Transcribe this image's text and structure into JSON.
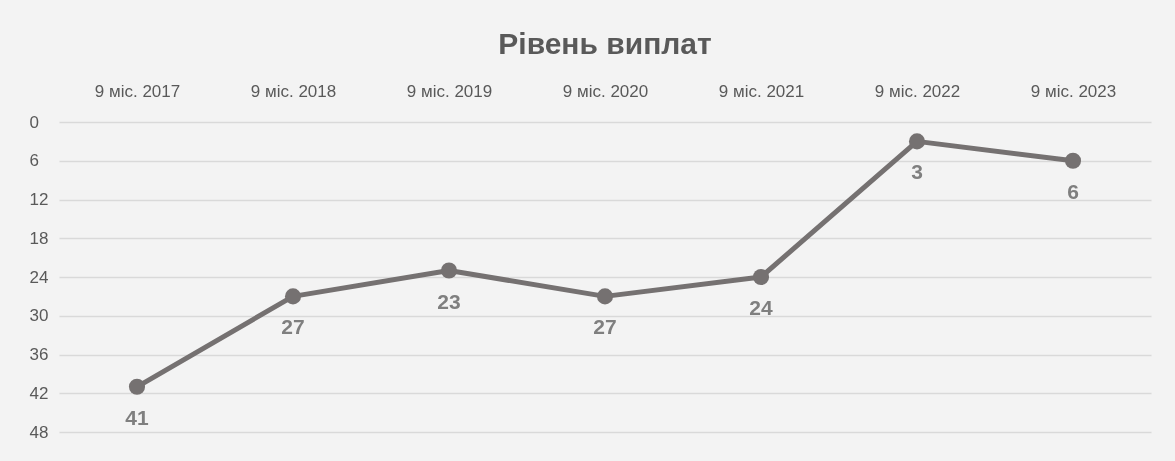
{
  "chart_data": {
    "type": "line",
    "title": "Рівень виплат",
    "categories": [
      "9 міс. 2017",
      "9 міс. 2018",
      "9 міс. 2019",
      "9 міс. 2020",
      "9 міс. 2021",
      "9 міс. 2022",
      "9 міс. 2023"
    ],
    "series": [
      {
        "color": "#757171",
        "values": [
          41,
          27,
          23,
          27,
          24,
          3,
          6
        ]
      }
    ],
    "ylim": [
      48,
      0
    ],
    "yticks": [
      0,
      6,
      12,
      18,
      24,
      30,
      36,
      42,
      48
    ],
    "grid": "y",
    "marker": "circle",
    "line_style": "solid",
    "data_labels": true
  }
}
